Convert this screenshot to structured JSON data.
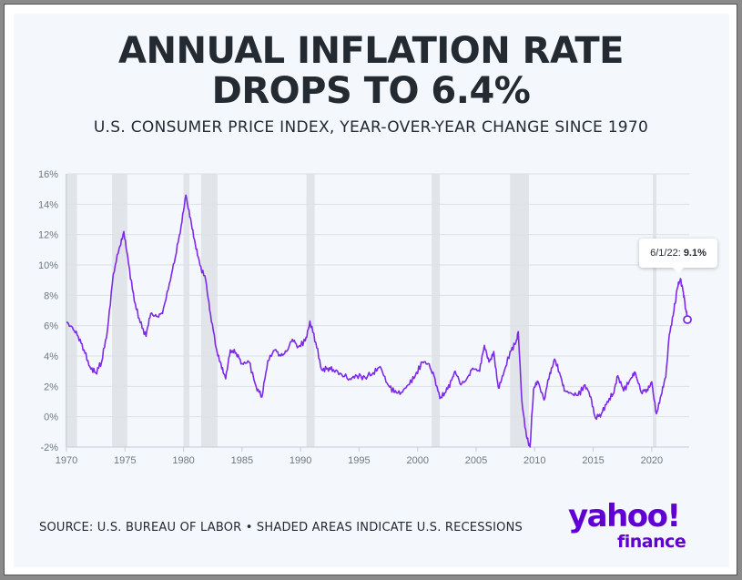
{
  "title_line1": "ANNUAL INFLATION RATE",
  "title_line2": "DROPS TO 6.4%",
  "subtitle": "U.S. CONSUMER PRICE INDEX, YEAR-OVER-YEAR CHANGE SINCE 1970",
  "source": "SOURCE: U.S. BUREAU OF LABOR • SHADED AREAS INDICATE U.S. RECESSIONS",
  "logo": {
    "top": "yahoo!",
    "bottom": "finance"
  },
  "callout": {
    "date": "6/1/22:",
    "value": "9.1%"
  },
  "colors": {
    "line": "#7d2ae8",
    "recession": "#e1e4e8",
    "title": "#232a31",
    "logo": "#6001d2",
    "background": "#f4f7fb"
  },
  "chart_data": {
    "type": "line",
    "x_axis": {
      "ticks": [
        1970,
        1975,
        1980,
        1985,
        1990,
        1995,
        2000,
        2005,
        2010,
        2015,
        2020
      ],
      "range": [
        1970,
        2023.2
      ]
    },
    "y_axis": {
      "ticks": [
        -2,
        0,
        2,
        4,
        6,
        8,
        10,
        12,
        14,
        16
      ],
      "tick_labels": [
        "-2%",
        "0%",
        "2%",
        "4%",
        "6%",
        "8%",
        "10%",
        "12%",
        "14%",
        "16%"
      ],
      "range": [
        -2,
        16
      ]
    },
    "grid": "horizontal",
    "recessions": [
      [
        1969.9,
        1970.9
      ],
      [
        1973.9,
        1975.2
      ],
      [
        1980.0,
        1980.5
      ],
      [
        1981.5,
        1982.9
      ],
      [
        1990.5,
        1991.2
      ],
      [
        2001.2,
        2001.9
      ],
      [
        2007.9,
        2009.5
      ],
      [
        2020.1,
        2020.4
      ]
    ],
    "series": [
      {
        "values": [
          [
            1970.0,
            6.2
          ],
          [
            1970.5,
            5.9
          ],
          [
            1971.0,
            5.3
          ],
          [
            1971.5,
            4.4
          ],
          [
            1972.0,
            3.3
          ],
          [
            1972.5,
            2.9
          ],
          [
            1973.0,
            3.6
          ],
          [
            1973.5,
            5.7
          ],
          [
            1974.0,
            9.4
          ],
          [
            1974.5,
            11.1
          ],
          [
            1974.9,
            12.2
          ],
          [
            1975.3,
            10.1
          ],
          [
            1975.8,
            7.6
          ],
          [
            1976.3,
            6.2
          ],
          [
            1976.8,
            5.3
          ],
          [
            1977.2,
            6.8
          ],
          [
            1977.7,
            6.6
          ],
          [
            1978.2,
            6.8
          ],
          [
            1978.8,
            8.8
          ],
          [
            1979.3,
            10.5
          ],
          [
            1979.8,
            12.6
          ],
          [
            1980.2,
            14.6
          ],
          [
            1980.6,
            13.1
          ],
          [
            1981.0,
            11.4
          ],
          [
            1981.4,
            10.0
          ],
          [
            1981.9,
            9.0
          ],
          [
            1982.3,
            6.8
          ],
          [
            1982.8,
            4.5
          ],
          [
            1983.2,
            3.5
          ],
          [
            1983.6,
            2.5
          ],
          [
            1984.0,
            4.4
          ],
          [
            1984.5,
            4.2
          ],
          [
            1985.0,
            3.5
          ],
          [
            1985.6,
            3.6
          ],
          [
            1986.2,
            2.0
          ],
          [
            1986.7,
            1.3
          ],
          [
            1987.2,
            3.7
          ],
          [
            1987.8,
            4.4
          ],
          [
            1988.3,
            4.0
          ],
          [
            1988.8,
            4.3
          ],
          [
            1989.3,
            5.1
          ],
          [
            1989.8,
            4.6
          ],
          [
            1990.4,
            5.0
          ],
          [
            1990.8,
            6.3
          ],
          [
            1991.3,
            4.9
          ],
          [
            1991.8,
            3.1
          ],
          [
            1992.3,
            3.2
          ],
          [
            1992.8,
            3.1
          ],
          [
            1993.5,
            2.8
          ],
          [
            1994.2,
            2.5
          ],
          [
            1994.8,
            2.7
          ],
          [
            1995.5,
            2.6
          ],
          [
            1996.2,
            2.9
          ],
          [
            1996.8,
            3.3
          ],
          [
            1997.4,
            2.2
          ],
          [
            1998.0,
            1.6
          ],
          [
            1998.6,
            1.6
          ],
          [
            1999.2,
            2.1
          ],
          [
            1999.8,
            2.7
          ],
          [
            2000.4,
            3.6
          ],
          [
            2000.9,
            3.5
          ],
          [
            2001.4,
            2.7
          ],
          [
            2001.9,
            1.2
          ],
          [
            2002.4,
            1.6
          ],
          [
            2002.9,
            2.4
          ],
          [
            2003.2,
            3.0
          ],
          [
            2003.7,
            2.1
          ],
          [
            2004.2,
            2.5
          ],
          [
            2004.7,
            3.2
          ],
          [
            2005.3,
            3.0
          ],
          [
            2005.7,
            4.7
          ],
          [
            2006.1,
            3.6
          ],
          [
            2006.5,
            4.3
          ],
          [
            2006.9,
            1.9
          ],
          [
            2007.3,
            2.7
          ],
          [
            2007.9,
            4.3
          ],
          [
            2008.4,
            4.9
          ],
          [
            2008.6,
            5.6
          ],
          [
            2008.9,
            1.1
          ],
          [
            2009.3,
            -1.3
          ],
          [
            2009.6,
            -2.0
          ],
          [
            2009.9,
            1.8
          ],
          [
            2010.3,
            2.3
          ],
          [
            2010.8,
            1.1
          ],
          [
            2011.3,
            2.9
          ],
          [
            2011.7,
            3.8
          ],
          [
            2012.2,
            2.7
          ],
          [
            2012.6,
            1.7
          ],
          [
            2013.2,
            1.5
          ],
          [
            2013.7,
            1.4
          ],
          [
            2014.3,
            2.1
          ],
          [
            2014.8,
            1.3
          ],
          [
            2015.2,
            -0.1
          ],
          [
            2015.7,
            0.2
          ],
          [
            2016.2,
            1.0
          ],
          [
            2016.7,
            1.5
          ],
          [
            2017.1,
            2.7
          ],
          [
            2017.6,
            1.7
          ],
          [
            2018.2,
            2.5
          ],
          [
            2018.6,
            2.9
          ],
          [
            2019.1,
            1.6
          ],
          [
            2019.6,
            1.8
          ],
          [
            2020.0,
            2.3
          ],
          [
            2020.4,
            0.2
          ],
          [
            2020.8,
            1.4
          ],
          [
            2021.2,
            2.6
          ],
          [
            2021.5,
            5.4
          ],
          [
            2021.9,
            7.0
          ],
          [
            2022.2,
            8.5
          ],
          [
            2022.45,
            9.1
          ],
          [
            2022.7,
            8.2
          ],
          [
            2022.9,
            7.1
          ],
          [
            2023.05,
            6.4
          ]
        ]
      }
    ],
    "highlight": {
      "x": 2022.45,
      "y": 9.1
    },
    "endpoint": {
      "x": 2023.05,
      "y": 6.4
    }
  }
}
